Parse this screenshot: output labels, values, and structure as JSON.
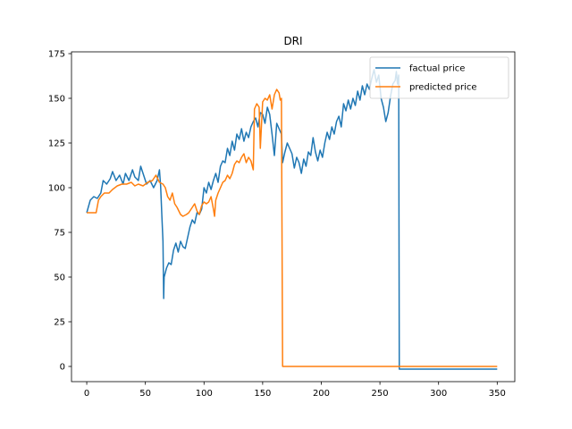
{
  "chart_data": {
    "type": "line",
    "title": "DRI",
    "xlabel": "",
    "ylabel": "",
    "xlim": [
      -13,
      365
    ],
    "ylim": [
      -8.5,
      176
    ],
    "xticks": [
      0,
      50,
      100,
      150,
      200,
      250,
      300,
      350
    ],
    "yticks": [
      0,
      25,
      50,
      75,
      100,
      125,
      150,
      175
    ],
    "grid": false,
    "legend_position": "upper right",
    "series": [
      {
        "name": "factual price",
        "color": "#1f77b4",
        "points": [
          [
            0,
            86
          ],
          [
            3,
            93
          ],
          [
            6,
            95
          ],
          [
            9,
            94
          ],
          [
            12,
            97
          ],
          [
            14,
            104
          ],
          [
            17,
            102
          ],
          [
            20,
            105
          ],
          [
            22,
            109
          ],
          [
            25,
            104
          ],
          [
            28,
            107
          ],
          [
            31,
            102
          ],
          [
            33,
            108
          ],
          [
            36,
            104
          ],
          [
            39,
            110
          ],
          [
            41,
            106
          ],
          [
            44,
            104
          ],
          [
            46,
            112
          ],
          [
            48,
            108
          ],
          [
            51,
            102
          ],
          [
            54,
            104
          ],
          [
            57,
            100
          ],
          [
            60,
            104
          ],
          [
            62,
            110
          ],
          [
            63,
            101
          ],
          [
            64,
            85
          ],
          [
            65,
            70
          ],
          [
            65.6,
            38
          ],
          [
            66,
            50
          ],
          [
            68,
            55
          ],
          [
            70,
            58
          ],
          [
            72,
            57
          ],
          [
            74,
            65
          ],
          [
            76,
            69
          ],
          [
            78,
            64
          ],
          [
            80,
            70
          ],
          [
            82,
            67
          ],
          [
            84,
            66
          ],
          [
            86,
            72
          ],
          [
            88,
            78
          ],
          [
            90,
            82
          ],
          [
            92,
            80
          ],
          [
            94,
            86
          ],
          [
            96,
            85
          ],
          [
            98,
            88
          ],
          [
            100,
            100
          ],
          [
            102,
            97
          ],
          [
            104,
            103
          ],
          [
            106,
            99
          ],
          [
            108,
            104
          ],
          [
            110,
            108
          ],
          [
            112,
            103
          ],
          [
            114,
            112
          ],
          [
            116,
            115
          ],
          [
            118,
            114
          ],
          [
            120,
            122
          ],
          [
            122,
            118
          ],
          [
            124,
            126
          ],
          [
            126,
            121
          ],
          [
            128,
            130
          ],
          [
            130,
            127
          ],
          [
            132,
            133
          ],
          [
            134,
            126
          ],
          [
            136,
            131
          ],
          [
            138,
            128
          ],
          [
            140,
            134
          ],
          [
            142,
            137
          ],
          [
            144,
            139
          ],
          [
            146,
            134
          ],
          [
            148,
            142
          ],
          [
            150,
            141
          ],
          [
            152,
            136
          ],
          [
            154,
            145
          ],
          [
            156,
            141
          ],
          [
            158,
            130
          ],
          [
            160,
            118
          ],
          [
            162,
            136
          ],
          [
            164,
            133
          ],
          [
            166,
            130
          ],
          [
            167,
            114
          ],
          [
            169,
            120
          ],
          [
            171,
            125
          ],
          [
            173,
            122
          ],
          [
            175,
            119
          ],
          [
            177,
            111
          ],
          [
            179,
            117
          ],
          [
            181,
            114
          ],
          [
            183,
            108
          ],
          [
            185,
            116
          ],
          [
            187,
            112
          ],
          [
            189,
            120
          ],
          [
            191,
            118
          ],
          [
            193,
            128
          ],
          [
            195,
            120
          ],
          [
            197,
            115
          ],
          [
            199,
            121
          ],
          [
            201,
            117
          ],
          [
            203,
            125
          ],
          [
            205,
            131
          ],
          [
            207,
            127
          ],
          [
            209,
            134
          ],
          [
            211,
            130
          ],
          [
            213,
            137
          ],
          [
            215,
            140
          ],
          [
            217,
            134
          ],
          [
            219,
            147
          ],
          [
            221,
            143
          ],
          [
            223,
            149
          ],
          [
            225,
            144
          ],
          [
            227,
            150
          ],
          [
            229,
            146
          ],
          [
            231,
            154
          ],
          [
            233,
            149
          ],
          [
            235,
            157
          ],
          [
            237,
            152
          ],
          [
            239,
            158
          ],
          [
            241,
            155
          ],
          [
            243,
            161
          ],
          [
            245,
            166
          ],
          [
            247,
            159
          ],
          [
            249,
            163
          ],
          [
            251,
            150
          ],
          [
            253,
            145
          ],
          [
            255,
            137
          ],
          [
            257,
            142
          ],
          [
            259,
            151
          ],
          [
            261,
            158
          ],
          [
            263,
            160
          ],
          [
            264,
            165
          ],
          [
            265,
            158
          ],
          [
            266,
            163
          ],
          [
            266.5,
            -1.5
          ],
          [
            350,
            -1.5
          ]
        ]
      },
      {
        "name": "predicted price",
        "color": "#ff7f0e",
        "points": [
          [
            0,
            86
          ],
          [
            4,
            86
          ],
          [
            8,
            86
          ],
          [
            10,
            93
          ],
          [
            12,
            95
          ],
          [
            15,
            97
          ],
          [
            19,
            97
          ],
          [
            22,
            99
          ],
          [
            26,
            101
          ],
          [
            30,
            102
          ],
          [
            34,
            102
          ],
          [
            38,
            103
          ],
          [
            41,
            101
          ],
          [
            44,
            102
          ],
          [
            48,
            101
          ],
          [
            52,
            103
          ],
          [
            56,
            104
          ],
          [
            59,
            107
          ],
          [
            62,
            103
          ],
          [
            65,
            102
          ],
          [
            67,
            100
          ],
          [
            69,
            95
          ],
          [
            71,
            93
          ],
          [
            73,
            97
          ],
          [
            75,
            91
          ],
          [
            77,
            89
          ],
          [
            80,
            85
          ],
          [
            82,
            84
          ],
          [
            85,
            85
          ],
          [
            87,
            86
          ],
          [
            89,
            88
          ],
          [
            92,
            91
          ],
          [
            94,
            87
          ],
          [
            96,
            85
          ],
          [
            98,
            90
          ],
          [
            100,
            92
          ],
          [
            102,
            91
          ],
          [
            104,
            92
          ],
          [
            106,
            95
          ],
          [
            108,
            88
          ],
          [
            109,
            84
          ],
          [
            110,
            93
          ],
          [
            112,
            97
          ],
          [
            114,
            100
          ],
          [
            116,
            103
          ],
          [
            118,
            104
          ],
          [
            120,
            107
          ],
          [
            122,
            105
          ],
          [
            124,
            108
          ],
          [
            126,
            113
          ],
          [
            128,
            115
          ],
          [
            130,
            114
          ],
          [
            132,
            117
          ],
          [
            134,
            119
          ],
          [
            136,
            114
          ],
          [
            138,
            117
          ],
          [
            140,
            115
          ],
          [
            142,
            110
          ],
          [
            143,
            144
          ],
          [
            145,
            147
          ],
          [
            147,
            145
          ],
          [
            148,
            122
          ],
          [
            150,
            148
          ],
          [
            152,
            150
          ],
          [
            154,
            149
          ],
          [
            156,
            152
          ],
          [
            158,
            144
          ],
          [
            160,
            152
          ],
          [
            162,
            155
          ],
          [
            164,
            153
          ],
          [
            165,
            149
          ],
          [
            166,
            150
          ],
          [
            167,
            0
          ],
          [
            350,
            0
          ]
        ]
      }
    ]
  }
}
